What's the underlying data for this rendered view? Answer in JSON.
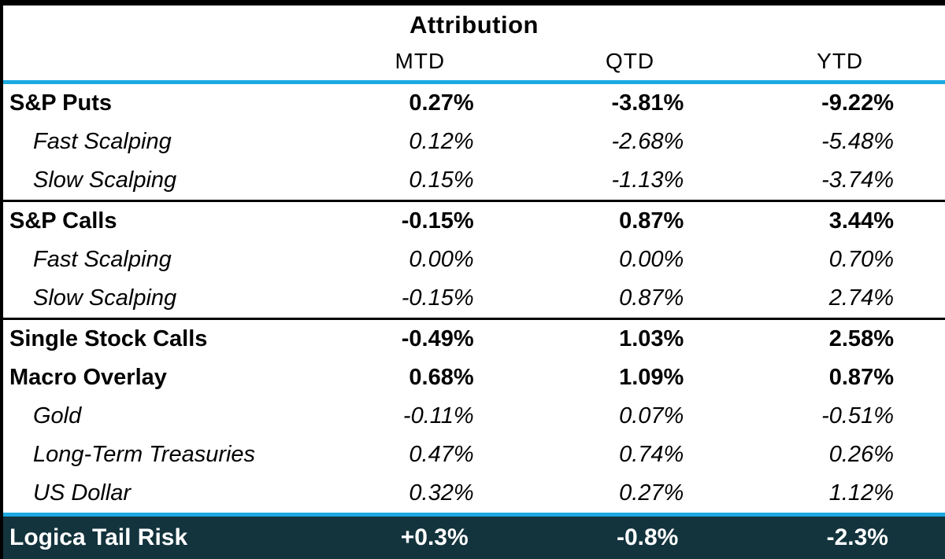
{
  "table": {
    "title": "Attribution",
    "columns": [
      "MTD",
      "QTD",
      "YTD"
    ],
    "sections": [
      {
        "rows": [
          {
            "label": "S&P Puts",
            "style": "bold",
            "values": [
              "0.27%",
              "-3.81%",
              "-9.22%"
            ]
          },
          {
            "label": "Fast Scalping",
            "style": "italic",
            "values": [
              "0.12%",
              "-2.68%",
              "-5.48%"
            ]
          },
          {
            "label": "Slow Scalping",
            "style": "italic",
            "values": [
              "0.15%",
              "-1.13%",
              "-3.74%"
            ]
          }
        ]
      },
      {
        "rows": [
          {
            "label": "S&P Calls",
            "style": "bold",
            "values": [
              "-0.15%",
              "0.87%",
              "3.44%"
            ]
          },
          {
            "label": "Fast Scalping",
            "style": "italic",
            "values": [
              "0.00%",
              "0.00%",
              "0.70%"
            ]
          },
          {
            "label": "Slow Scalping",
            "style": "italic",
            "values": [
              "-0.15%",
              "0.87%",
              "2.74%"
            ]
          }
        ]
      },
      {
        "rows": [
          {
            "label": "Single Stock Calls",
            "style": "bold",
            "values": [
              "-0.49%",
              "1.03%",
              "2.58%"
            ]
          },
          {
            "label": "Macro Overlay",
            "style": "bold",
            "values": [
              "0.68%",
              "1.09%",
              "0.87%"
            ]
          },
          {
            "label": "Gold",
            "style": "italic",
            "values": [
              "-0.11%",
              "0.07%",
              "-0.51%"
            ]
          },
          {
            "label": "Long-Term Treasuries",
            "style": "italic",
            "values": [
              "0.47%",
              "0.74%",
              "0.26%"
            ]
          },
          {
            "label": "US Dollar",
            "style": "italic",
            "values": [
              "0.32%",
              "0.27%",
              "1.12%"
            ]
          }
        ]
      }
    ],
    "footer": {
      "label": "Logica Tail Risk",
      "values": [
        "+0.3%",
        "-0.8%",
        "-2.3%"
      ]
    },
    "colors": {
      "accent_line": "#1CA9E2",
      "footer_bg": "#13333D",
      "footer_text": "#FFFFFF",
      "border": "#000000"
    }
  },
  "chart_data": {
    "type": "table",
    "title": "Attribution",
    "columns": [
      "",
      "MTD",
      "QTD",
      "YTD"
    ],
    "rows": [
      [
        "S&P Puts",
        "0.27%",
        "-3.81%",
        "-9.22%"
      ],
      [
        "Fast Scalping",
        "0.12%",
        "-2.68%",
        "-5.48%"
      ],
      [
        "Slow Scalping",
        "0.15%",
        "-1.13%",
        "-3.74%"
      ],
      [
        "S&P Calls",
        "-0.15%",
        "0.87%",
        "3.44%"
      ],
      [
        "Fast Scalping",
        "0.00%",
        "0.00%",
        "0.70%"
      ],
      [
        "Slow Scalping",
        "-0.15%",
        "0.87%",
        "2.74%"
      ],
      [
        "Single Stock Calls",
        "-0.49%",
        "1.03%",
        "2.58%"
      ],
      [
        "Macro Overlay",
        "0.68%",
        "1.09%",
        "0.87%"
      ],
      [
        "Gold",
        "-0.11%",
        "0.07%",
        "-0.51%"
      ],
      [
        "Long-Term Treasuries",
        "0.47%",
        "0.74%",
        "0.26%"
      ],
      [
        "US Dollar",
        "0.32%",
        "0.27%",
        "1.12%"
      ],
      [
        "Logica Tail Risk",
        "+0.3%",
        "-0.8%",
        "-2.3%"
      ]
    ]
  }
}
